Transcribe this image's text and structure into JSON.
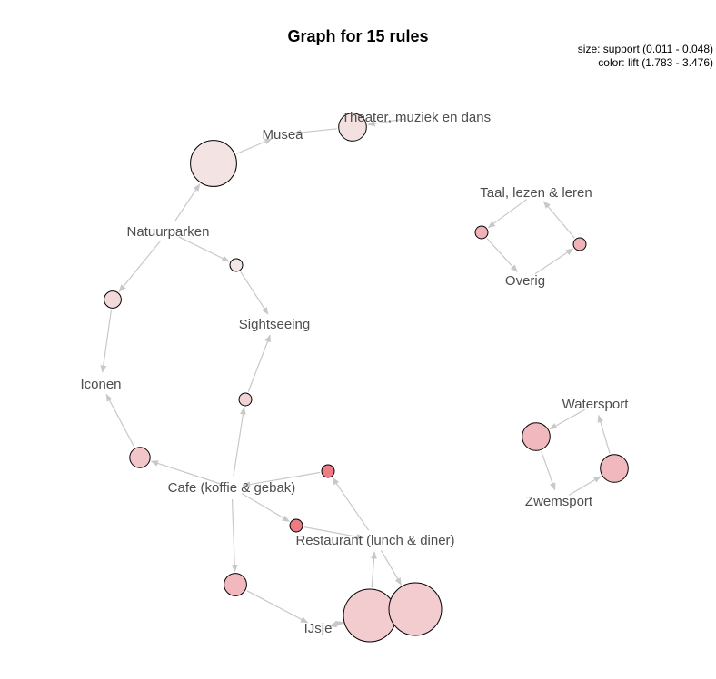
{
  "title": "Graph for 15 rules",
  "legend": {
    "size": "size: support (0.011 - 0.048)",
    "color": "color: lift (1.783 - 3.476)"
  },
  "colors": {
    "edge": "#c8c8c8",
    "label": "#4d4d4d",
    "lift_low": "#f3e6e6",
    "lift_high": "#ee7a84"
  },
  "items": [
    {
      "id": "musea",
      "label": "Musea"
    },
    {
      "id": "theater",
      "label": "Theater, muziek en dans"
    },
    {
      "id": "natuurparken",
      "label": "Natuurparken"
    },
    {
      "id": "sightseeing",
      "label": "Sightseeing"
    },
    {
      "id": "iconen",
      "label": "Iconen"
    },
    {
      "id": "cafe",
      "label": "Cafe (koffie & gebak)"
    },
    {
      "id": "restaurant",
      "label": "Restaurant (lunch & diner)"
    },
    {
      "id": "ijsje",
      "label": "IJsje"
    },
    {
      "id": "taal",
      "label": "Taal, lezen & leren"
    },
    {
      "id": "overig",
      "label": "Overig"
    },
    {
      "id": "watersport",
      "label": "Watersport"
    },
    {
      "id": "zwemsport",
      "label": "Zwemsport"
    }
  ],
  "rules": [
    {
      "id": "r1",
      "lhs": [
        "theater"
      ],
      "rhs": "musea",
      "support": 0.025,
      "lift": 1.9
    },
    {
      "id": "r2",
      "lhs": [
        "natuurparken"
      ],
      "rhs": "musea",
      "support": 0.042,
      "lift": 1.85
    },
    {
      "id": "r3",
      "lhs": [
        "natuurparken"
      ],
      "rhs": "sightseeing",
      "support": 0.011,
      "lift": 1.8
    },
    {
      "id": "r4",
      "lhs": [
        "natuurparken"
      ],
      "rhs": "iconen",
      "support": 0.015,
      "lift": 2.0
    },
    {
      "id": "r5",
      "lhs": [
        "cafe"
      ],
      "rhs": "sightseeing",
      "support": 0.011,
      "lift": 2.1
    },
    {
      "id": "r6",
      "lhs": [
        "cafe"
      ],
      "rhs": "iconen",
      "support": 0.018,
      "lift": 2.3
    },
    {
      "id": "r7",
      "lhs": [
        "restaurant"
      ],
      "rhs": "cafe",
      "support": 0.011,
      "lift": 3.45
    },
    {
      "id": "r8",
      "lhs": [
        "cafe"
      ],
      "rhs": "restaurant",
      "support": 0.011,
      "lift": 3.47
    },
    {
      "id": "r9",
      "lhs": [
        "cafe"
      ],
      "rhs": "ijsje",
      "support": 0.02,
      "lift": 2.5
    },
    {
      "id": "r10",
      "lhs": [
        "ijsje"
      ],
      "rhs": "restaurant",
      "support": 0.048,
      "lift": 2.2
    },
    {
      "id": "r11",
      "lhs": [
        "restaurant"
      ],
      "rhs": "ijsje",
      "support": 0.048,
      "lift": 2.2
    },
    {
      "id": "r12",
      "lhs": [
        "taal"
      ],
      "rhs": "overig",
      "support": 0.011,
      "lift": 2.6
    },
    {
      "id": "r13",
      "lhs": [
        "overig"
      ],
      "rhs": "taal",
      "support": 0.011,
      "lift": 2.6
    },
    {
      "id": "r14",
      "lhs": [
        "zwemsport"
      ],
      "rhs": "watersport",
      "support": 0.025,
      "lift": 2.5
    },
    {
      "id": "r15",
      "lhs": [
        "watersport"
      ],
      "rhs": "zwemsport",
      "support": 0.025,
      "lift": 2.5
    }
  ]
}
